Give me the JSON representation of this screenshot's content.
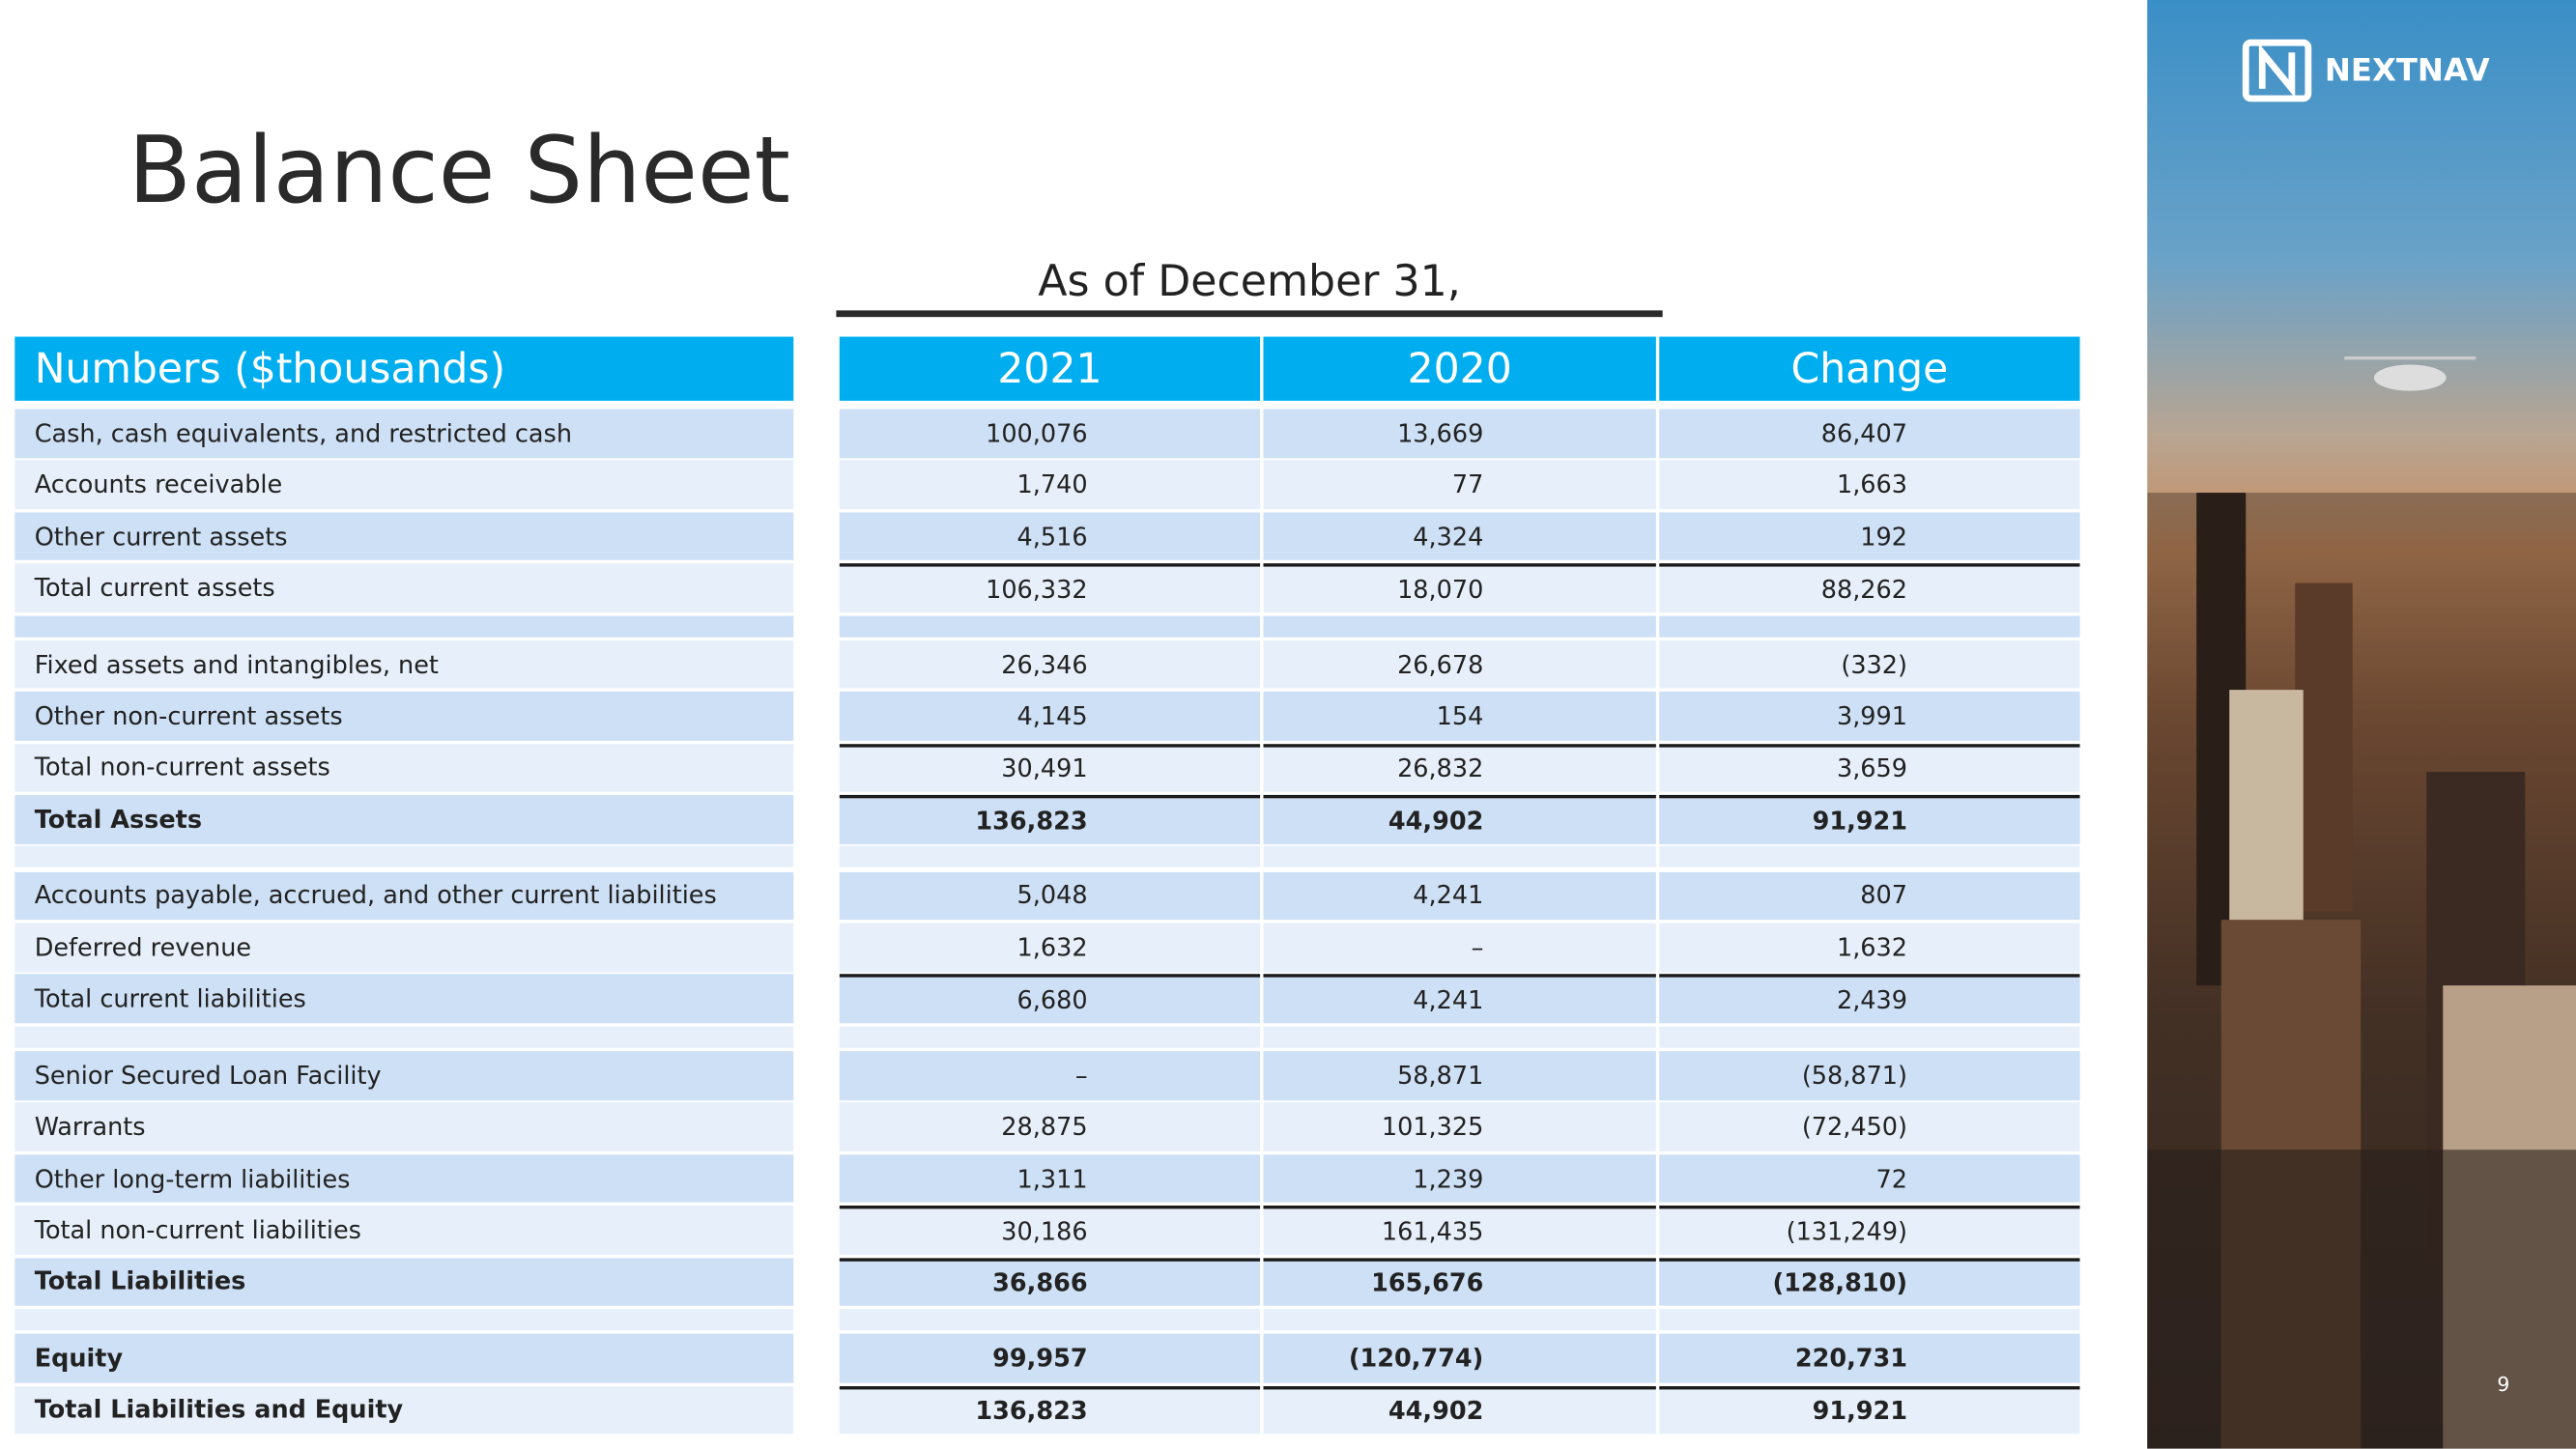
{
  "header": {
    "title": "Balance Sheet",
    "period": "As of December 31,"
  },
  "brand": {
    "logo": "NEXTNAV",
    "page_number": "9"
  },
  "table": {
    "columns": [
      "Numbers ($thousands)",
      "2021",
      "2020",
      "Change"
    ],
    "groups": [
      [
        {
          "label": "Cash, cash equivalents, and restricted cash",
          "values": [
            "100,076",
            "13,669",
            "86,407"
          ]
        },
        {
          "label": "Accounts receivable",
          "values": [
            "1,740",
            "77",
            "1,663"
          ]
        },
        {
          "label": "Other current assets",
          "values": [
            "4,516",
            "4,324",
            "192"
          ]
        },
        {
          "label": "Total current assets",
          "values": [
            "106,332",
            "18,070",
            "88,262"
          ]
        }
      ],
      [
        {
          "label": "Fixed assets and intangibles, net",
          "values": [
            "26,346",
            "26,678",
            "(332)"
          ]
        },
        {
          "label": "Other non-current assets",
          "values": [
            "4,145",
            "154",
            "3,991"
          ]
        },
        {
          "label": "Total non-current assets",
          "values": [
            "30,491",
            "26,832",
            "3,659"
          ]
        },
        {
          "label": "Total Assets",
          "values": [
            "136,823",
            "44,902",
            "91,921"
          ]
        }
      ],
      [
        {
          "label": "Accounts payable, accrued, and other current liabilities",
          "values": [
            "5,048",
            "4,241",
            "807"
          ]
        },
        {
          "label": "Deferred revenue",
          "values": [
            "1,632",
            "–",
            "1,632"
          ]
        },
        {
          "label": "Total current liabilities",
          "values": [
            "6,680",
            "4,241",
            "2,439"
          ]
        }
      ],
      [
        {
          "label": "Senior Secured Loan Facility",
          "values": [
            "–",
            "58,871",
            "(58,871)"
          ]
        },
        {
          "label": "Warrants",
          "values": [
            "28,875",
            "101,325",
            "(72,450)"
          ]
        },
        {
          "label": "Other long-term liabilities",
          "values": [
            "1,311",
            "1,239",
            "72"
          ]
        },
        {
          "label": "Total non-current liabilities",
          "values": [
            "30,186",
            "161,435",
            "(131,249)"
          ]
        },
        {
          "label": "Total Liabilities",
          "values": [
            "36,866",
            "165,676",
            "(128,810)"
          ]
        }
      ],
      [
        {
          "label": "Equity",
          "values": [
            "99,957",
            "(120,774)",
            "220,731"
          ]
        },
        {
          "label": "Total Liabilities and Equity",
          "values": [
            "136,823",
            "44,902",
            "91,921"
          ]
        }
      ]
    ]
  }
}
